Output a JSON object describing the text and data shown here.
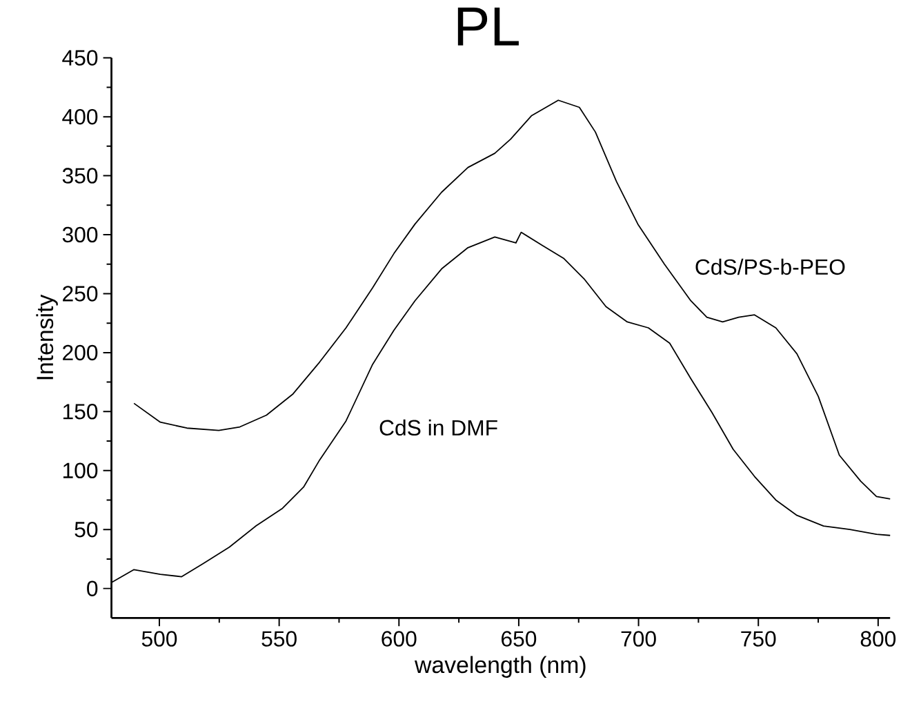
{
  "chart_data": {
    "type": "line",
    "title": "PL",
    "xlabel": "wavelength (nm)",
    "ylabel": "Intensity",
    "xlim": [
      480,
      805
    ],
    "xticks": [
      500,
      550,
      600,
      650,
      700,
      750,
      800
    ],
    "ylim": [
      -25,
      450
    ],
    "yticks": [
      0,
      50,
      100,
      150,
      200,
      250,
      300,
      350,
      400,
      450
    ],
    "grid": false,
    "legend": false,
    "marker": "none",
    "line_style": "solid",
    "series": [
      {
        "name": "CdS/PS-b-PEO",
        "color": "#000000",
        "x": [
          489.4,
          500.4,
          511.5,
          524.8,
          533.6,
          544.7,
          555.8,
          566.9,
          577.9,
          589,
          597.9,
          606.7,
          617.8,
          628.8,
          640,
          646.6,
          655.4,
          666.5,
          675.3,
          682,
          690.8,
          699.7,
          710.8,
          721.8,
          728.5,
          735.1,
          741.8,
          748.4,
          757.3,
          766.1,
          775,
          783.8,
          792.7,
          799.3,
          805
        ],
        "values": [
          157,
          141,
          136,
          134,
          137,
          147,
          165,
          192,
          221,
          255,
          284,
          309,
          336,
          357,
          369,
          381,
          401,
          414,
          408,
          387,
          345,
          309,
          275,
          244,
          230,
          226,
          230,
          232,
          221,
          199,
          163,
          113,
          91,
          78,
          76
        ]
      },
      {
        "name": "CdS in DMF",
        "color": "#000000",
        "x": [
          480,
          489.4,
          500.4,
          509.3,
          518.2,
          529.2,
          540.3,
          551.4,
          560.2,
          566.9,
          577.9,
          589,
          597.9,
          606.7,
          617.8,
          628.8,
          640,
          648.8,
          651,
          659.8,
          668.7,
          677.5,
          686.4,
          695.3,
          704.1,
          713,
          721.8,
          730.7,
          739.5,
          748.4,
          757.3,
          766.1,
          777.2,
          788.2,
          799.3,
          805
        ],
        "values": [
          5,
          16,
          12,
          10,
          21,
          35,
          53,
          68,
          86,
          109,
          142,
          190,
          219,
          244,
          271,
          289,
          298,
          293,
          302,
          291,
          280,
          262,
          239,
          226,
          221,
          208,
          178,
          149,
          118,
          95,
          75,
          62,
          53,
          50,
          46,
          45
        ]
      }
    ]
  }
}
